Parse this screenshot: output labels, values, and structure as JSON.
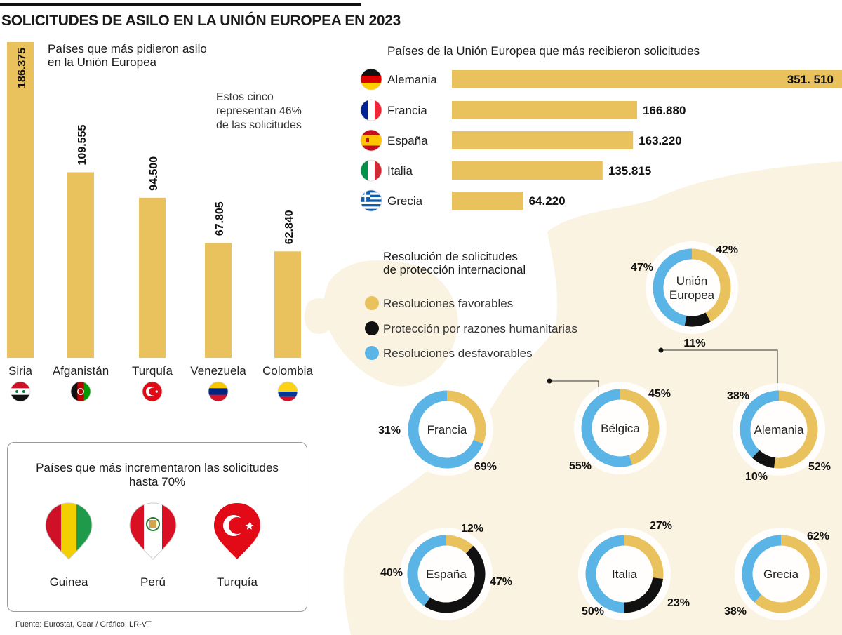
{
  "title": "SOLICITUDES DE ASILO EN LA UNIÓN EUROPEA EN 2023",
  "source": "Fuente: Eurostat, Cear / Gráfico: LR-VT",
  "chart_data": [
    {
      "type": "bar",
      "orientation": "vertical",
      "title": "Países que más pidieron asilo en la Unión Europea",
      "title_lines": [
        "Países que más pidieron asilo",
        "en la Unión Europea"
      ],
      "annotation_lines": [
        "Estos cinco",
        "representan 46%",
        "de las solicitudes"
      ],
      "categories": [
        "Siria",
        "Afganistán",
        "Turquía",
        "Venezuela",
        "Colombia"
      ],
      "values": [
        186375,
        109555,
        94500,
        67805,
        62840
      ],
      "labels": [
        "186.375",
        "109.555",
        "94.500",
        "67.805",
        "62.840"
      ],
      "flags": [
        "syria-flag-icon",
        "afghanistan-flag-icon",
        "turkey-flag-icon",
        "venezuela-flag-icon",
        "colombia-flag-icon"
      ],
      "ylim": [
        0,
        186375
      ],
      "color": "#e9c25e"
    },
    {
      "type": "bar",
      "orientation": "horizontal",
      "title": "Países de la Unión Europea que más recibieron solicitudes",
      "categories": [
        "Alemania",
        "Francia",
        "España",
        "Italia",
        "Grecia"
      ],
      "values": [
        351510,
        166880,
        163220,
        135815,
        64220
      ],
      "labels": [
        "351. 510",
        "166.880",
        "163.220",
        "135.815",
        "64.220"
      ],
      "flags": [
        "germany-flag-icon",
        "france-flag-icon",
        "spain-flag-icon",
        "italy-flag-icon",
        "greece-flag-icon"
      ],
      "xlim": [
        0,
        351510
      ],
      "color": "#e9c25e"
    },
    {
      "type": "pie",
      "variant": "donut",
      "title": "Resolución de solicitudes de protección internacional",
      "title_lines": [
        "Resolución de solicitudes",
        "de protección internacional"
      ],
      "legend": [
        {
          "name": "Resoluciones favorables",
          "color": "#e9c25e"
        },
        {
          "name": "Protección por razones humanitarias",
          "color": "#111111"
        },
        {
          "name": "Resoluciones desfavorables",
          "color": "#5ab4e5"
        }
      ],
      "donuts": [
        {
          "name": "Unión Europea",
          "name_lines": [
            "Unión",
            "Europea"
          ],
          "favorable": 42,
          "humanitarian": 11,
          "unfavorable": 47
        },
        {
          "name": "Francia",
          "name_lines": [
            "Francia"
          ],
          "favorable": 31,
          "humanitarian": 0,
          "unfavorable": 69
        },
        {
          "name": "Bélgica",
          "name_lines": [
            "Bélgica"
          ],
          "favorable": 45,
          "humanitarian": 0,
          "unfavorable": 55
        },
        {
          "name": "Alemania",
          "name_lines": [
            "Alemania"
          ],
          "favorable": 52,
          "humanitarian": 10,
          "unfavorable": 38
        },
        {
          "name": "España",
          "name_lines": [
            "España"
          ],
          "favorable": 12,
          "humanitarian": 47,
          "unfavorable": 40
        },
        {
          "name": "Italia",
          "name_lines": [
            "Italia"
          ],
          "favorable": 27,
          "humanitarian": 23,
          "unfavorable": 50
        },
        {
          "name": "Grecia",
          "name_lines": [
            "Grecia"
          ],
          "favorable": 62,
          "humanitarian": 0,
          "unfavorable": 38
        }
      ]
    }
  ],
  "increase_panel": {
    "title_lines": [
      "Países que más incrementaron las solicitudes",
      "hasta 70%"
    ],
    "pins": [
      {
        "name": "Guinea",
        "icon": "guinea-flag-pin-icon"
      },
      {
        "name": "Perú",
        "icon": "peru-flag-pin-icon"
      },
      {
        "name": "Turquía",
        "icon": "turkey-flag-pin-icon"
      }
    ]
  },
  "colors": {
    "favorable": "#e9c25e",
    "humanitarian": "#111111",
    "unfavorable": "#5ab4e5",
    "map": "#fbf3e1"
  }
}
